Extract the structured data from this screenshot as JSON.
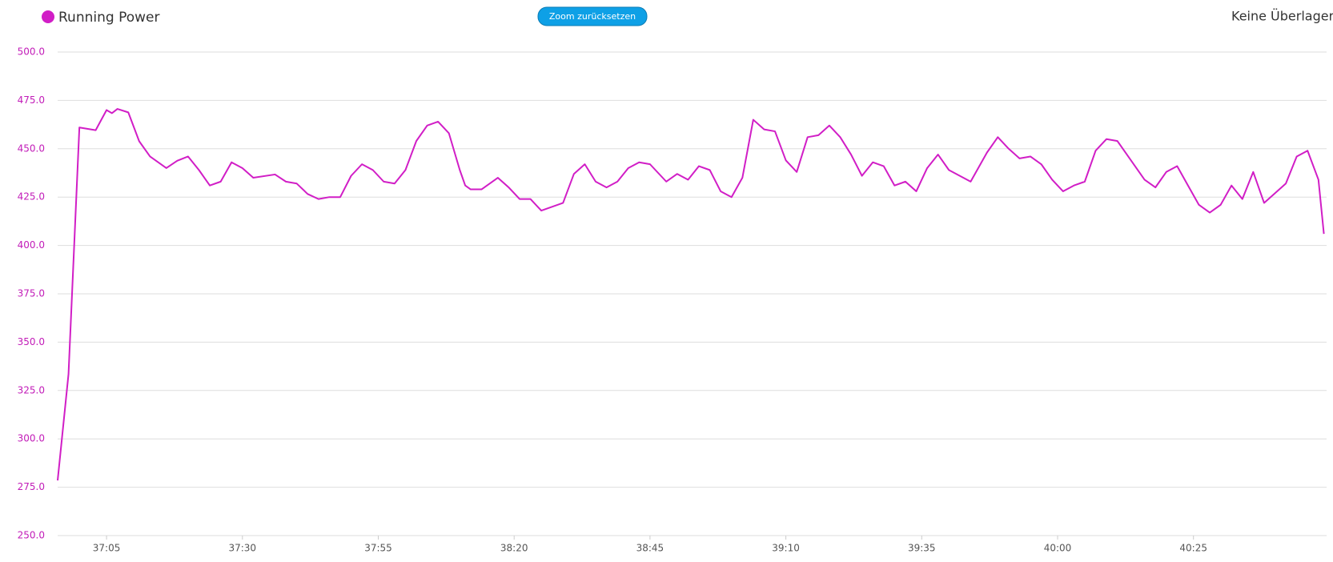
{
  "chart_data": {
    "type": "line",
    "series": [
      {
        "name": "Running Power",
        "color": "#d11ec6",
        "x": [
          2216,
          2218,
          2220,
          2223,
          2225,
          2226,
          2227,
          2229,
          2231,
          2233,
          2236,
          2238,
          2240,
          2242,
          2244,
          2246,
          2248,
          2250,
          2252,
          2256,
          2258,
          2260,
          2262,
          2264,
          2266,
          2268,
          2270,
          2272,
          2274,
          2276,
          2278,
          2280,
          2282,
          2284,
          2286,
          2288,
          2290,
          2291,
          2292,
          2294,
          2297,
          2299,
          2301,
          2303,
          2305,
          2309,
          2311,
          2313,
          2315,
          2317,
          2319,
          2321,
          2323,
          2325,
          2328,
          2330,
          2332,
          2334,
          2336,
          2338,
          2340,
          2342,
          2344,
          2346,
          2348,
          2350,
          2352,
          2354,
          2356,
          2358,
          2360,
          2362,
          2364,
          2366,
          2368,
          2370,
          2372,
          2374,
          2376,
          2378,
          2380,
          2384,
          2387,
          2389,
          2391,
          2393,
          2395,
          2397,
          2399,
          2401,
          2403,
          2405,
          2407,
          2409,
          2411,
          2413,
          2416,
          2418,
          2420,
          2422,
          2424,
          2426,
          2428,
          2430,
          2432,
          2434,
          2436,
          2438,
          2442,
          2444,
          2446,
          2448,
          2449
        ],
        "values": [
          278.5,
          333.5,
          461,
          459.6,
          470,
          468.4,
          470.6,
          468.8,
          453.9,
          446,
          440,
          443.8,
          446,
          439,
          431,
          433,
          443,
          440,
          435,
          436.7,
          433,
          432,
          426.6,
          424,
          425,
          425,
          436,
          442,
          439,
          433,
          432,
          439,
          454,
          462,
          464,
          458,
          439,
          431,
          429,
          429,
          435,
          430,
          424,
          424,
          418,
          422,
          437,
          442,
          433,
          430,
          433,
          440,
          443,
          442,
          433,
          437,
          434,
          441,
          439,
          428,
          425,
          435,
          465,
          460,
          459,
          444,
          438,
          456,
          457,
          462,
          456,
          447,
          436,
          443,
          441,
          431,
          433,
          428,
          440,
          447,
          439,
          433,
          448,
          456,
          450,
          445,
          446,
          442,
          434,
          428,
          431,
          433,
          449,
          455,
          454,
          446,
          434,
          430,
          438,
          441,
          431,
          421,
          417,
          421,
          431,
          424,
          438,
          422,
          432,
          446,
          449,
          434,
          406
        ]
      }
    ],
    "xlim": [
      2216,
      2449.5
    ],
    "xticks": [
      {
        "value": 2225,
        "label": "37:05"
      },
      {
        "value": 2250,
        "label": "37:30"
      },
      {
        "value": 2275,
        "label": "37:55"
      },
      {
        "value": 2300,
        "label": "38:20"
      },
      {
        "value": 2325,
        "label": "38:45"
      },
      {
        "value": 2350,
        "label": "39:10"
      },
      {
        "value": 2375,
        "label": "39:35"
      },
      {
        "value": 2400,
        "label": "40:00"
      },
      {
        "value": 2425,
        "label": "40:25"
      }
    ],
    "ylim": [
      250,
      500
    ],
    "yticks": [
      {
        "value": 250,
        "label": "250.0"
      },
      {
        "value": 275,
        "label": "275.0"
      },
      {
        "value": 300,
        "label": "300.0"
      },
      {
        "value": 325,
        "label": "325.0"
      },
      {
        "value": 350,
        "label": "350.0"
      },
      {
        "value": 375,
        "label": "375.0"
      },
      {
        "value": 400,
        "label": "400.0"
      },
      {
        "value": 425,
        "label": "425.0"
      },
      {
        "value": 450,
        "label": "450.0"
      },
      {
        "value": 475,
        "label": "475.0"
      },
      {
        "value": 500,
        "label": "500.0"
      }
    ],
    "grid": true
  },
  "ui": {
    "zoom_reset": "Zoom zurücksetzen",
    "overlay": "Keine Überlager"
  }
}
